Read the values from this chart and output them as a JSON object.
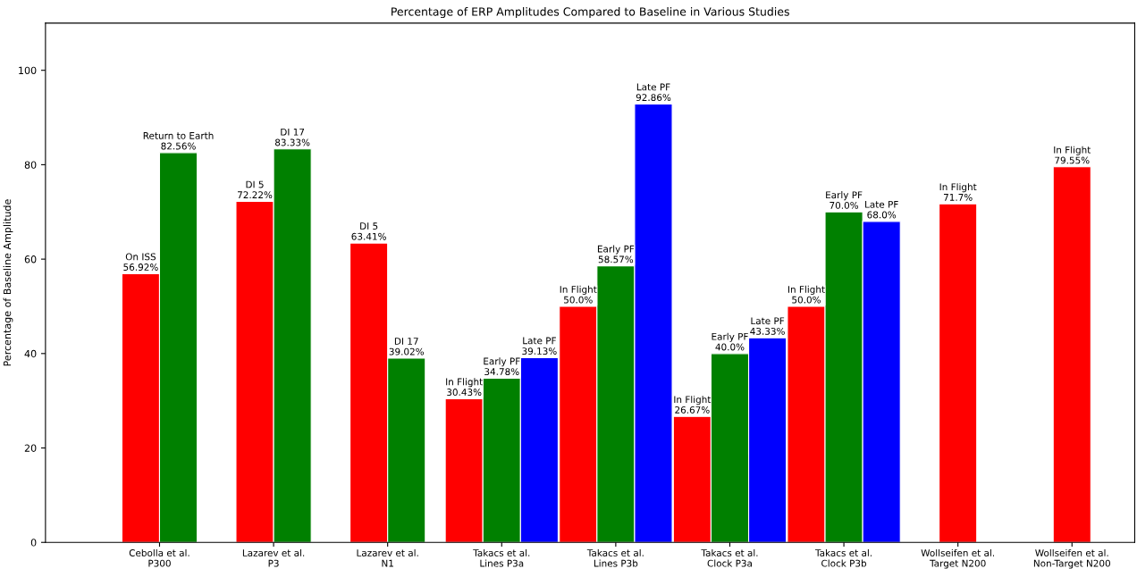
{
  "chart_data": {
    "type": "bar",
    "title": "Percentage of ERP Amplitudes Compared to Baseline in Various Studies",
    "ylabel": "Percentage of Baseline Amplitude",
    "categories": [
      "Cebolla et al.\nP300",
      "Lazarev et al.\nP3",
      "Lazarev et al.\nN1",
      "Takacs et al.\nLines P3a",
      "Takacs et al.\nLines P3b",
      "Takacs et al.\nClock P3a",
      "Takacs et al.\nClock P3b",
      "Wollseifen et al.\nTarget N200",
      "Wollseifen et al.\nNon-Target N200"
    ],
    "series": [
      {
        "color": "#ff0000",
        "values": [
          56.92,
          72.22,
          63.41,
          30.43,
          50.0,
          26.67,
          50.0,
          71.7,
          79.55
        ],
        "value_labels": [
          "On ISS\n56.92%",
          "DI 5\n72.22%",
          "DI 5\n63.41%",
          "In Flight\n30.43%",
          "In Flight\n50.0%",
          "In Flight\n26.67%",
          "In Flight\n50.0%",
          "In Flight\n71.7%",
          "In Flight\n79.55%"
        ]
      },
      {
        "color": "#008000",
        "values": [
          82.56,
          83.33,
          39.02,
          34.78,
          58.57,
          40.0,
          70.0,
          null,
          null
        ],
        "value_labels": [
          "Return to Earth\n82.56%",
          "DI 17\n83.33%",
          "DI 17\n39.02%",
          "Early PF\n34.78%",
          "Early PF\n58.57%",
          "Early PF\n40.0%",
          "Early PF\n70.0%",
          null,
          null
        ]
      },
      {
        "color": "#0000ff",
        "values": [
          null,
          null,
          null,
          39.13,
          92.86,
          43.33,
          68.0,
          null,
          null
        ],
        "value_labels": [
          null,
          null,
          null,
          "Late PF\n39.13%",
          "Late PF\n92.86%",
          "Late PF\n43.33%",
          "Late PF\n68.0%",
          null,
          null
        ]
      }
    ],
    "ylim": [
      0,
      110
    ],
    "yticks": [
      0,
      20,
      40,
      60,
      80,
      100
    ],
    "grid": false,
    "legend": false
  }
}
